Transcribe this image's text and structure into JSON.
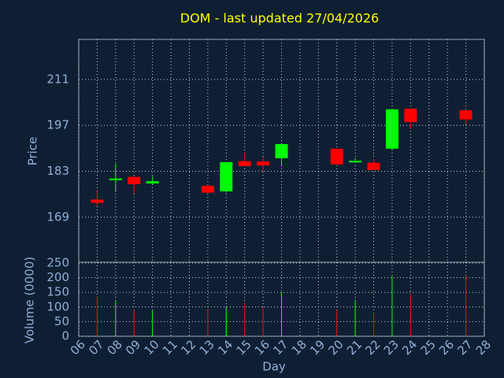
{
  "chart_data": {
    "type": "candlestick",
    "title": "DOM - last updated 27/04/2026",
    "ylabel": "Price",
    "volume_ylabel": "Volume (0000)",
    "xlabel": "Day",
    "x": [
      7,
      8,
      9,
      10,
      13,
      14,
      15,
      16,
      17,
      20,
      21,
      22,
      23,
      24,
      27
    ],
    "open": [
      174.4,
      180.5,
      181.3,
      179.3,
      178.6,
      176.9,
      186.1,
      186.0,
      187.0,
      189.9,
      185.8,
      185.6,
      189.9,
      202.1,
      201.6
    ],
    "high": [
      177.0,
      185.3,
      181.8,
      181.5,
      178.6,
      185.8,
      188.7,
      187.5,
      191.3,
      189.9,
      187.0,
      186.8,
      201.9,
      202.1,
      201.6
    ],
    "low": [
      172.4,
      176.7,
      176.2,
      179.0,
      176.2,
      176.5,
      184.6,
      182.9,
      184.8,
      185.1,
      185.6,
      183.4,
      189.6,
      195.9,
      197.3
    ],
    "close": [
      173.4,
      180.8,
      179.1,
      180.0,
      176.5,
      185.8,
      184.6,
      184.8,
      191.3,
      185.1,
      186.2,
      183.4,
      201.9,
      198.0,
      198.8
    ],
    "volume": [
      135,
      120,
      90,
      90,
      90,
      100,
      115,
      100,
      150,
      90,
      120,
      80,
      205,
      145,
      205
    ],
    "up_color": "#00ff00",
    "down_color": "#ff0000",
    "xlim": [
      6,
      28
    ],
    "xticks": [
      {
        "value": 6,
        "label": "06"
      },
      {
        "value": 7,
        "label": "07"
      },
      {
        "value": 8,
        "label": "08"
      },
      {
        "value": 9,
        "label": "09"
      },
      10,
      11,
      12,
      13,
      14,
      15,
      16,
      17,
      18,
      19,
      20,
      21,
      22,
      23,
      24,
      25,
      26,
      27,
      28
    ],
    "ylim": [
      155.3,
      223.2
    ],
    "yticks": [
      169,
      183,
      197,
      211
    ],
    "volume_ylim": [
      0,
      250
    ],
    "volume_yticks": [
      0,
      50,
      100,
      150,
      200,
      250
    ],
    "grid": true
  }
}
